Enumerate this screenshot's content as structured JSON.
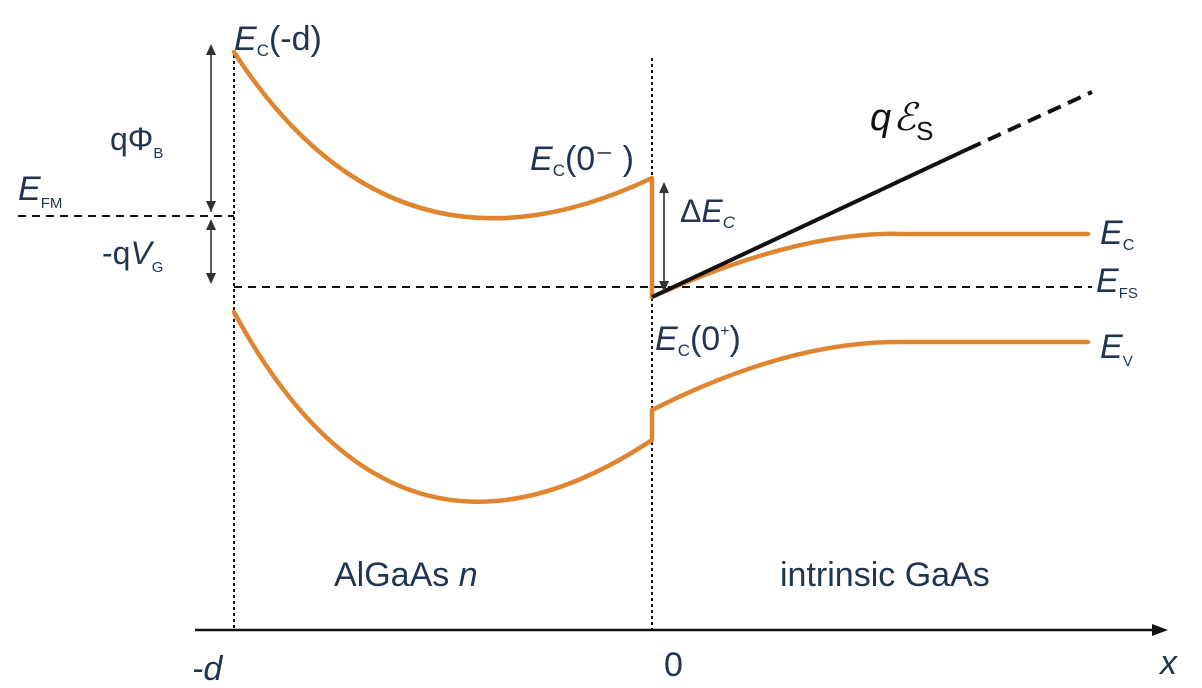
{
  "labels": {
    "ec_minus_d": {
      "main": "E",
      "sub": "C",
      "suffix": "(-d)"
    },
    "q_phi_b": {
      "main": "qΦ",
      "sub": "B"
    },
    "e_fm": {
      "main": "E",
      "sub": "FM"
    },
    "q_vg": {
      "pre": "-q",
      "main": "V",
      "sub": "G"
    },
    "ec_0_minus": {
      "main": "E",
      "sub": "C",
      "suffix": "(0⁻ )"
    },
    "delta_ec": {
      "pre": "Δ",
      "main": "E",
      "sub": "C"
    },
    "q_es": {
      "main": "q",
      "script": "ℰ",
      "sub": "S"
    },
    "ec_right": {
      "main": "E",
      "sub": "C"
    },
    "efs": {
      "main": "E",
      "sub": "FS"
    },
    "ec_0_plus": {
      "main": "E",
      "sub": "C",
      "suffix": "(0",
      "sup": "+",
      "close": ")"
    },
    "ev_right": {
      "main": "E",
      "sub": "V"
    },
    "region_left": {
      "pre": "AlGaAs ",
      "it": "n"
    },
    "region_right": "intrinsic GaAs",
    "axis_minus_d": "-d",
    "axis_zero": "0",
    "axis_x": "x"
  },
  "colors": {
    "band": "#e0852f",
    "text": "#1f3550",
    "field_line": "#111111"
  }
}
